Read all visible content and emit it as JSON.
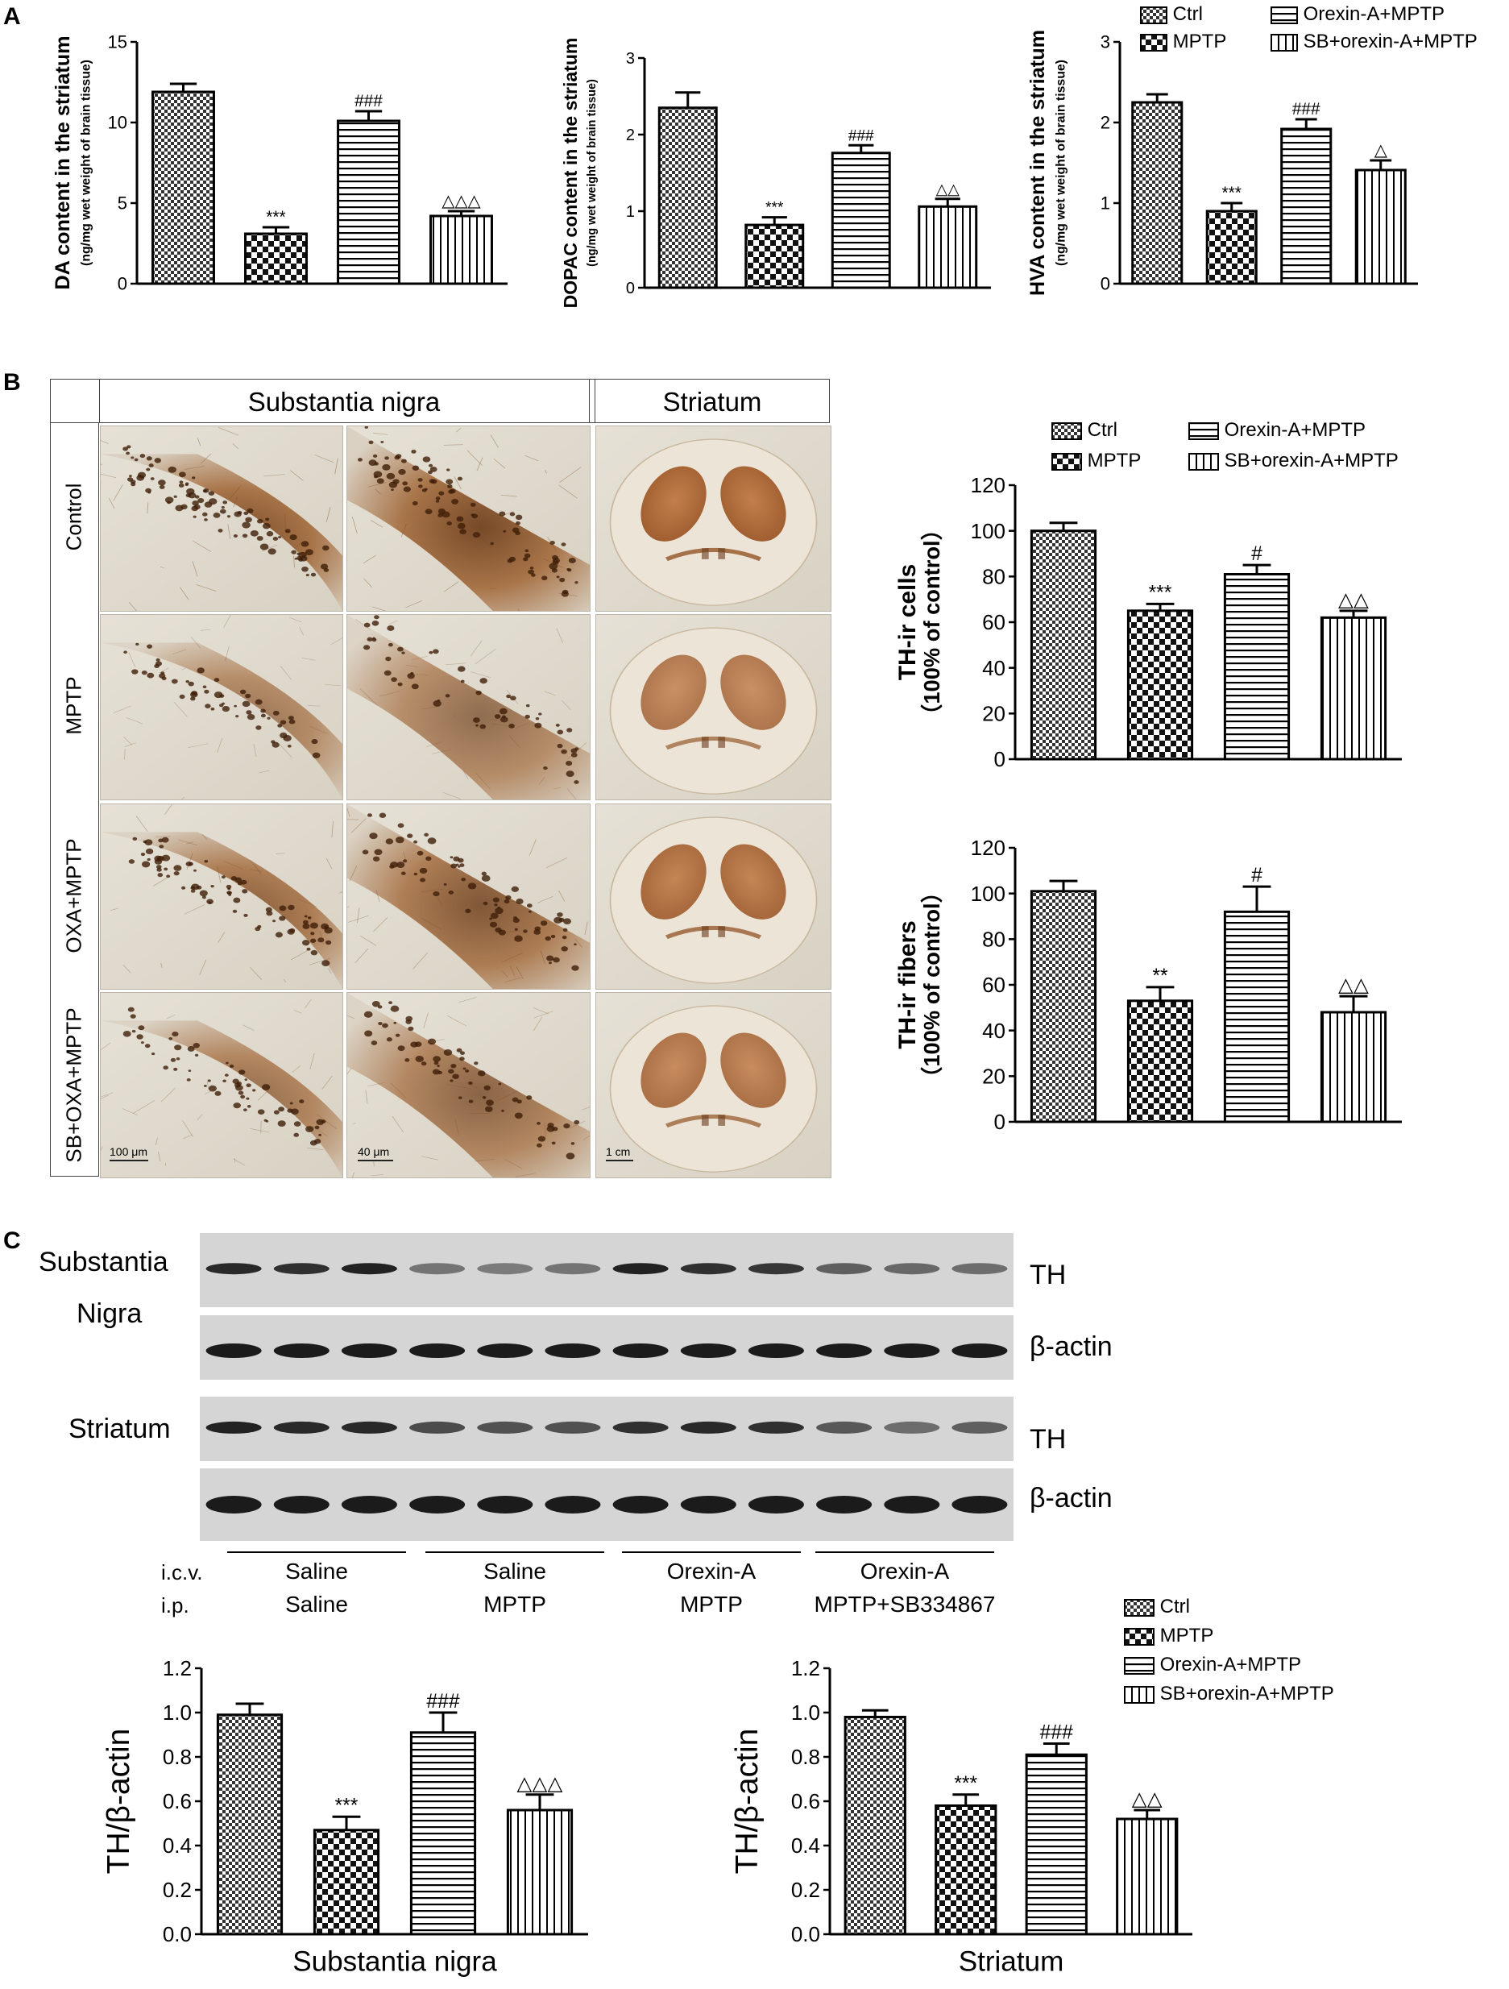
{
  "panels": {
    "a": "A",
    "b": "B",
    "c": "C"
  },
  "legend": {
    "ctrl": "Ctrl",
    "mptp": "MPTP",
    "oxa": "Orexin-A+MPTP",
    "sb": "SB+orexin-A+MPTP"
  },
  "patterns": [
    "checker-fine",
    "checker-coarse",
    "horizontal-lines",
    "vertical-lines"
  ],
  "chart_data": [
    {
      "id": "da",
      "type": "bar",
      "categories": [
        "Ctrl",
        "MPTP",
        "Orexin-A+MPTP",
        "SB+orexin-A+MPTP"
      ],
      "values": [
        11.9,
        3.1,
        10.1,
        4.2
      ],
      "errors": [
        0.5,
        0.4,
        0.6,
        0.3
      ],
      "marks": [
        "",
        "***",
        "###",
        "△△△"
      ],
      "ylabel": "DA content in the striatum",
      "ylabel2": "(ng/mg wet weight of brain tissue)",
      "ylim": [
        0,
        15
      ],
      "ticks": [
        "0",
        "5",
        "10",
        "15"
      ]
    },
    {
      "id": "dopac",
      "type": "bar",
      "categories": [
        "Ctrl",
        "MPTP",
        "Orexin-A+MPTP",
        "SB+orexin-A+MPTP"
      ],
      "values": [
        2.35,
        0.82,
        1.76,
        1.06
      ],
      "errors": [
        0.2,
        0.1,
        0.1,
        0.1
      ],
      "marks": [
        "",
        "***",
        "###",
        "△△"
      ],
      "ylabel": "DOPAC content in the striatum",
      "ylabel2": "(ng/mg wet weight of brain tissue)",
      "ylim": [
        0,
        3
      ],
      "ticks": [
        "0",
        "1",
        "2",
        "3"
      ]
    },
    {
      "id": "hva",
      "type": "bar",
      "categories": [
        "Ctrl",
        "MPTP",
        "Orexin-A+MPTP",
        "SB+orexin-A+MPTP"
      ],
      "values": [
        2.25,
        0.9,
        1.92,
        1.41
      ],
      "errors": [
        0.1,
        0.1,
        0.12,
        0.12
      ],
      "marks": [
        "",
        "***",
        "###",
        "△"
      ],
      "ylabel": "HVA content in the striatum",
      "ylabel2": "(ng/mg wet weight of brain tissue)",
      "ylim": [
        0,
        3
      ],
      "ticks": [
        "0",
        "1",
        "2",
        "3"
      ]
    },
    {
      "id": "thcells",
      "type": "bar",
      "categories": [
        "Ctrl",
        "MPTP",
        "Orexin-A+MPTP",
        "SB+orexin-A+MPTP"
      ],
      "values": [
        100,
        65,
        81,
        62
      ],
      "errors": [
        3.5,
        3,
        4,
        3
      ],
      "marks": [
        "",
        "***",
        "#",
        "△△"
      ],
      "ylabel": "TH-ir cells",
      "ylabel2": "（100% of control）",
      "ylim": [
        0,
        120
      ],
      "ticks": [
        "0",
        "20",
        "40",
        "60",
        "80",
        "100",
        "120"
      ]
    },
    {
      "id": "thfibers",
      "type": "bar",
      "categories": [
        "Ctrl",
        "MPTP",
        "Orexin-A+MPTP",
        "SB+orexin-A+MPTP"
      ],
      "values": [
        101,
        53,
        92,
        48
      ],
      "errors": [
        4.5,
        6,
        11,
        7
      ],
      "marks": [
        "",
        "**",
        "#",
        "△△"
      ],
      "ylabel": "TH-ir fibers",
      "ylabel2": "（100% of control）",
      "ylim": [
        0,
        120
      ],
      "ticks": [
        "0",
        "20",
        "40",
        "60",
        "80",
        "100",
        "120"
      ]
    },
    {
      "id": "wbsn",
      "type": "bar",
      "categories": [
        "Ctrl",
        "MPTP",
        "Orexin-A+MPTP",
        "SB+orexin-A+MPTP"
      ],
      "values": [
        0.99,
        0.47,
        0.91,
        0.56
      ],
      "errors": [
        0.05,
        0.06,
        0.09,
        0.07
      ],
      "marks": [
        "",
        "***",
        "###",
        "△△△"
      ],
      "ylabel": "TH/β-actin",
      "xlabel": "Substantia nigra",
      "ylim": [
        0,
        1.2
      ],
      "ticks": [
        "0.0",
        "0.2",
        "0.4",
        "0.6",
        "0.8",
        "1.0",
        "1.2"
      ]
    },
    {
      "id": "wbst",
      "type": "bar",
      "categories": [
        "Ctrl",
        "MPTP",
        "Orexin-A+MPTP",
        "SB+orexin-A+MPTP"
      ],
      "values": [
        0.98,
        0.58,
        0.81,
        0.52
      ],
      "errors": [
        0.03,
        0.05,
        0.05,
        0.04
      ],
      "marks": [
        "",
        "***",
        "###",
        "△△"
      ],
      "ylabel": "TH/β-actin",
      "xlabel": "Striatum",
      "ylim": [
        0,
        1.2
      ],
      "ticks": [
        "0.0",
        "0.2",
        "0.4",
        "0.6",
        "0.8",
        "1.0",
        "1.2"
      ]
    }
  ],
  "histology": {
    "col_sn": "Substantia nigra",
    "col_st": "Striatum",
    "rows": [
      "Control",
      "MPTP",
      "OXA+MPTP",
      "SB+OXA+MPTP"
    ],
    "scale_bars": [
      "100 μm",
      "40 μm",
      "1 cm"
    ]
  },
  "western": {
    "region_sn_1": "Substantia",
    "region_sn_2": "Nigra",
    "region_st": "Striatum",
    "band_th": "TH",
    "band_actin": "β-actin",
    "row_icv": "i.c.v.",
    "row_ip": "i.p.",
    "groups": [
      {
        "icv": "Saline",
        "ip": "Saline"
      },
      {
        "icv": "Saline",
        "ip": "MPTP"
      },
      {
        "icv": "Orexin-A",
        "ip": "MPTP"
      },
      {
        "icv": "Orexin-A",
        "ip": "MPTP+SB334867"
      }
    ]
  }
}
